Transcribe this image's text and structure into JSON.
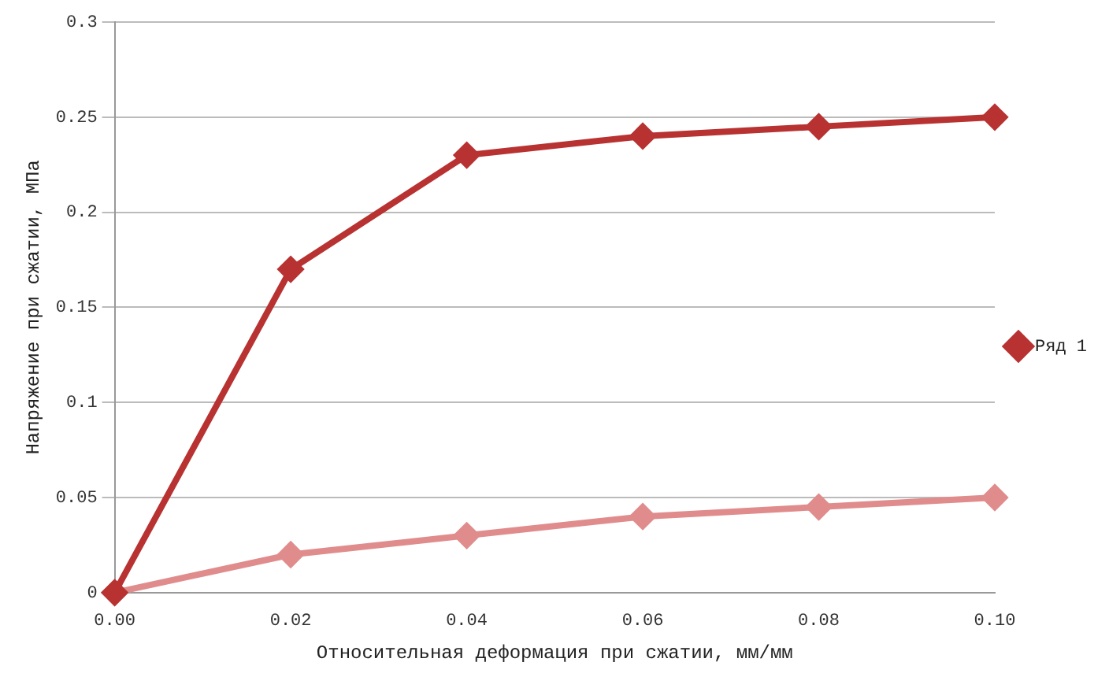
{
  "chart_data": {
    "type": "line",
    "xlabel": "Относительная деформация при сжатии, мм/мм",
    "ylabel": "Напряжение при сжатии, МПа",
    "x": [
      0,
      0.02,
      0.04,
      0.06,
      0.08,
      0.1
    ],
    "series": [
      {
        "name": "Ряд 1",
        "color": "#b83232",
        "values": [
          0,
          0.17,
          0.23,
          0.24,
          0.245,
          0.25
        ]
      },
      {
        "color": "#e08c8c",
        "values": [
          0,
          0.02,
          0.03,
          0.04,
          0.045,
          0.05
        ]
      }
    ],
    "xlim": [
      0,
      0.1
    ],
    "xticks": [
      {
        "value": 0,
        "label": "0.00"
      },
      {
        "value": 0.02,
        "label": "0.02"
      },
      {
        "value": 0.04,
        "label": "0.04"
      },
      {
        "value": 0.06,
        "label": "0.06"
      },
      {
        "value": 0.08,
        "label": "0.08"
      },
      {
        "value": 0.1,
        "label": "0.10"
      }
    ],
    "ylim": [
      0,
      0.3
    ],
    "yticks": [
      0,
      0.05,
      0.1,
      0.15,
      0.2,
      0.25,
      0.3
    ],
    "grid": "y",
    "legend": "right",
    "marker": "diamond",
    "line_style": "solid"
  }
}
